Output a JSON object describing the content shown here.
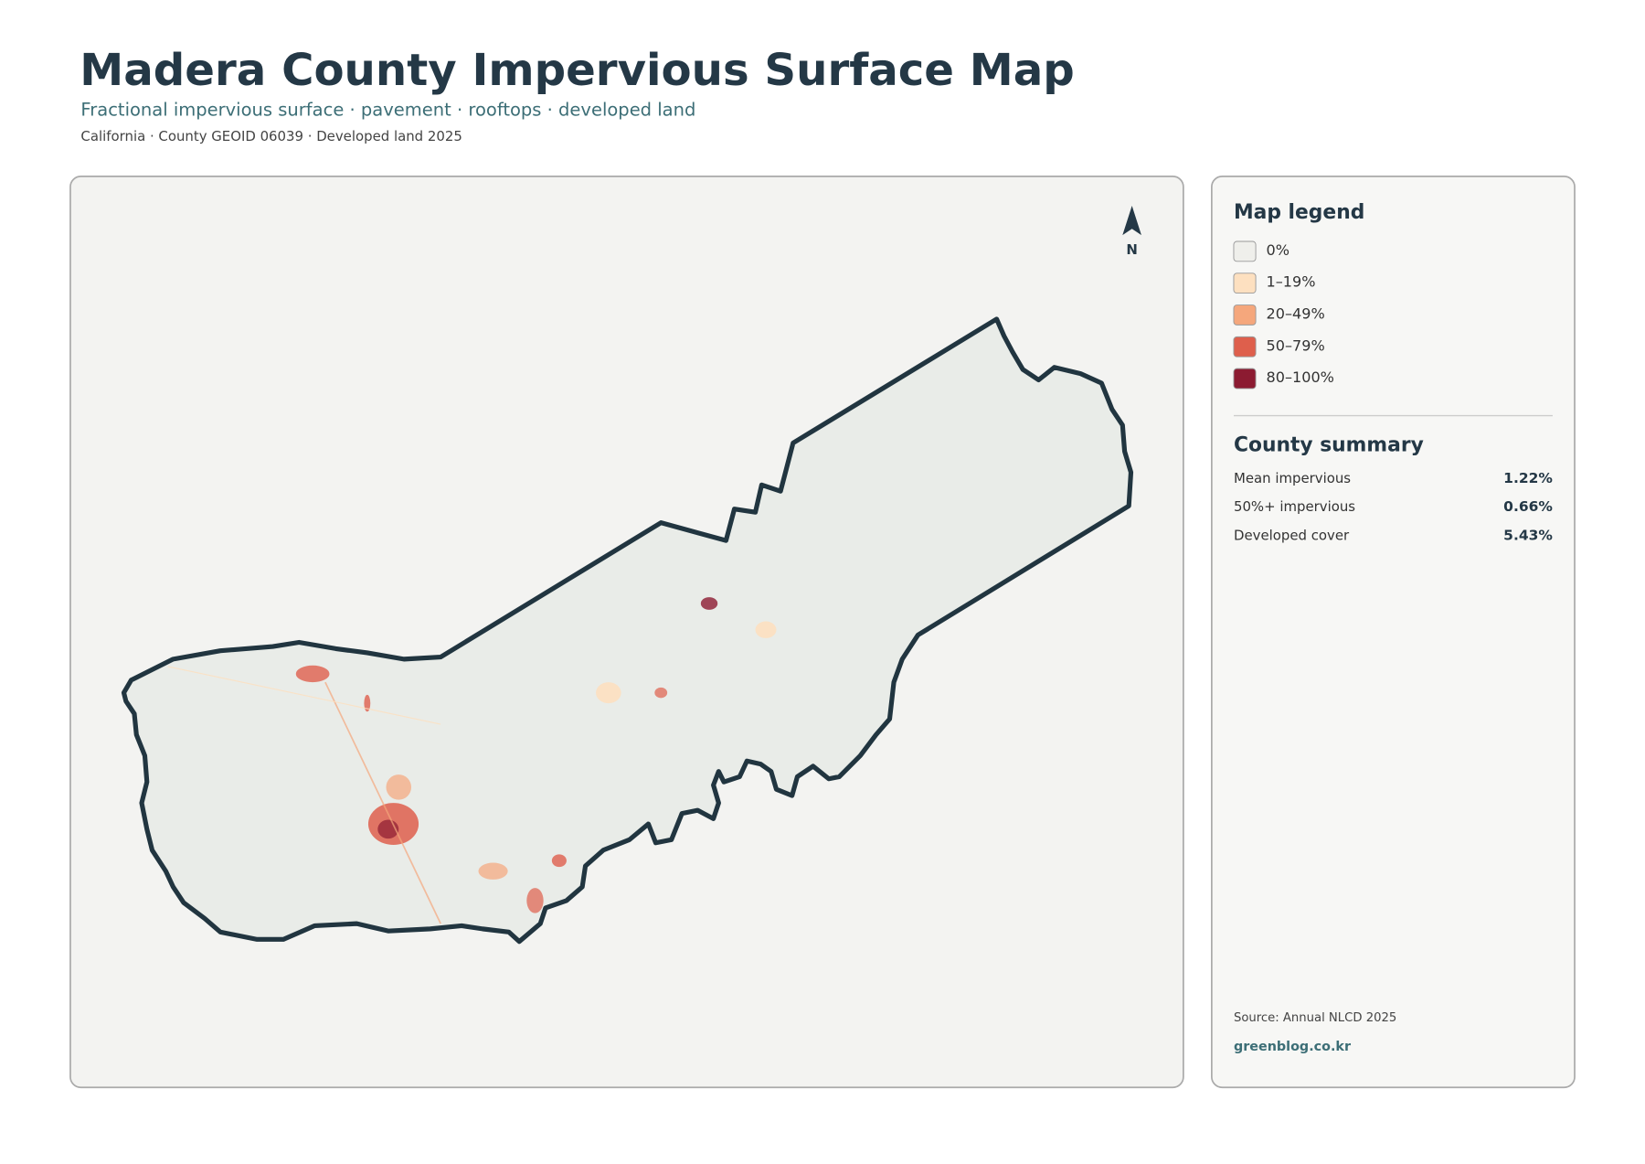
{
  "header": {
    "title": "Madera County Impervious Surface Map",
    "subtitle": "Fractional impervious surface · pavement · rooftops · developed land",
    "meta": "California · County GEOID 06039 · Developed land 2025"
  },
  "map": {
    "north_label": "N"
  },
  "legend": {
    "title": "Map legend",
    "items": [
      {
        "label": "0%",
        "color": "#efefeb"
      },
      {
        "label": "1–19%",
        "color": "#fde0c0"
      },
      {
        "label": "20–49%",
        "color": "#f5a77c"
      },
      {
        "label": "50–79%",
        "color": "#de5f4c"
      },
      {
        "label": "80–100%",
        "color": "#8c1b31"
      }
    ]
  },
  "summary": {
    "title": "County summary",
    "rows": [
      {
        "label": "Mean impervious",
        "value": "1.22%"
      },
      {
        "label": "50%+ impervious",
        "value": "0.66%"
      },
      {
        "label": "Developed cover",
        "value": "5.43%"
      }
    ]
  },
  "footer": {
    "source": "Source: Annual NLCD 2025",
    "site": "greenblog.co.kr"
  }
}
